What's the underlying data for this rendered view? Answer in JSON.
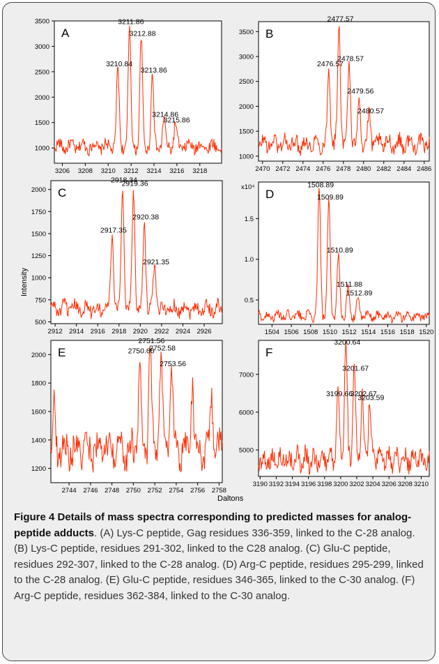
{
  "axis_ylabel": "Intensity",
  "axis_xlabel": "Daltons",
  "caption": {
    "title": "Figure 4 Details of mass spectra corresponding to predicted masses for analog-peptide adducts",
    "body": ". (A) Lys-C peptide, Gag residues 336-359, linked to the C-28 analog. (B) Lys-C peptide, residues 291-302, linked to the C28 analog. (C) Glu-C peptide, residues 292-307, linked to the C-28 analog. (D) Arg-C peptide, residues 295-299, linked to the C-28 analog. (E) Glu-C peptide, residues 346-365, linked to the C-30 analog. (F) Arg-C peptide, residues 362-384, linked to the C-30 analog."
  },
  "colors": {
    "trace": "#ff2a00",
    "frame": "#000000",
    "background": "#ffffff"
  },
  "chart_data": [
    {
      "type": "line",
      "panel": "A",
      "xlim": [
        3205.3,
        3219.9
      ],
      "ylim": [
        700,
        3500
      ],
      "xticks": [
        3206,
        3208,
        3210,
        3212,
        3214,
        3216,
        3218
      ],
      "yticks": [
        1000,
        1500,
        2000,
        2500,
        3000,
        3500
      ],
      "ytick_labels": [
        "1000",
        "1500",
        "2000",
        "2500",
        "3000",
        "3500"
      ],
      "baseline": 1030,
      "noise": 220,
      "peaks": [
        {
          "x": 3210.84,
          "y": 2550,
          "label": "3210.84"
        },
        {
          "x": 3211.86,
          "y": 3380,
          "label": "3211.86"
        },
        {
          "x": 3212.88,
          "y": 3150,
          "label": "3212.88"
        },
        {
          "x": 3213.86,
          "y": 2430,
          "label": "3213.86"
        },
        {
          "x": 3214.86,
          "y": 1560,
          "label": "3214.86"
        },
        {
          "x": 3215.86,
          "y": 1450,
          "label": "3215.86"
        }
      ]
    },
    {
      "type": "line",
      "panel": "B",
      "xlim": [
        2469.6,
        2486.5
      ],
      "ylim": [
        900,
        3700
      ],
      "xticks": [
        2470,
        2472,
        2474,
        2476,
        2478,
        2480,
        2482,
        2484,
        2486
      ],
      "yticks": [
        1000,
        1500,
        2000,
        2500,
        3000,
        3500
      ],
      "ytick_labels": [
        "1000",
        "1500",
        "2000",
        "2500",
        "3000",
        "3500"
      ],
      "baseline": 1250,
      "noise": 300,
      "peaks": [
        {
          "x": 2476.57,
          "y": 2750,
          "label": "2476.57"
        },
        {
          "x": 2477.57,
          "y": 3650,
          "label": "2477.57"
        },
        {
          "x": 2478.57,
          "y": 2850,
          "label": "2478.57"
        },
        {
          "x": 2479.56,
          "y": 2200,
          "label": "2479.56"
        },
        {
          "x": 2480.57,
          "y": 1800,
          "label": "2480.57"
        }
      ]
    },
    {
      "type": "line",
      "panel": "C",
      "xlim": [
        2911.6,
        2927.7
      ],
      "ylim": [
        480,
        2100
      ],
      "xticks": [
        2912,
        2914,
        2916,
        2918,
        2920,
        2922,
        2924,
        2926
      ],
      "yticks": [
        500,
        750,
        1000,
        1250,
        1500,
        1750,
        2000
      ],
      "ytick_labels": [
        "500",
        "750",
        "1000",
        "1250",
        "1500",
        "1750",
        "2000"
      ],
      "baseline": 650,
      "noise": 150,
      "peaks": [
        {
          "x": 2917.35,
          "y": 1480,
          "label": "2917.35"
        },
        {
          "x": 2918.34,
          "y": 2050,
          "label": "2918.34"
        },
        {
          "x": 2919.36,
          "y": 2010,
          "label": "2919.36"
        },
        {
          "x": 2920.38,
          "y": 1630,
          "label": "2920.38"
        },
        {
          "x": 2921.35,
          "y": 1120,
          "label": "2921.35"
        }
      ]
    },
    {
      "type": "line",
      "panel": "D",
      "xlim": [
        1502.6,
        1520.3
      ],
      "ylim": [
        0.2,
        1.95
      ],
      "xticks": [
        1504,
        1506,
        1508,
        1510,
        1512,
        1514,
        1516,
        1518,
        1520
      ],
      "yticks": [
        0.5,
        1.0,
        1.5
      ],
      "ytick_labels": [
        "0.5",
        "1.0",
        "1.5"
      ],
      "y_multiplier": "x10⁴",
      "baseline": 0.3,
      "noise": 0.1,
      "peaks": [
        {
          "x": 1508.89,
          "y": 1.85,
          "label": "1508.89"
        },
        {
          "x": 1509.89,
          "y": 1.7,
          "label": "1509.89"
        },
        {
          "x": 1510.89,
          "y": 1.05,
          "label": "1510.89"
        },
        {
          "x": 1511.88,
          "y": 0.63,
          "label": "1511.88"
        },
        {
          "x": 1512.89,
          "y": 0.52,
          "label": "1512.89"
        }
      ]
    },
    {
      "type": "line",
      "panel": "E",
      "xlim": [
        2742.3,
        2758.3
      ],
      "ylim": [
        1100,
        2100
      ],
      "xticks": [
        2744,
        2746,
        2748,
        2750,
        2752,
        2754,
        2756,
        2758
      ],
      "yticks": [
        1200,
        1400,
        1600,
        1800,
        2000
      ],
      "ytick_labels": [
        "1200",
        "1400",
        "1600",
        "1800",
        "2000"
      ],
      "baseline": 1330,
      "noise": 200,
      "peaks": [
        {
          "x": 2742.6,
          "y": 1600,
          "label": ""
        },
        {
          "x": 2750.6,
          "y": 1990,
          "label": "2750.60"
        },
        {
          "x": 2751.56,
          "y": 2060,
          "label": "2751.56"
        },
        {
          "x": 2752.58,
          "y": 2010,
          "label": "2752.58"
        },
        {
          "x": 2753.56,
          "y": 1900,
          "label": "2753.56"
        },
        {
          "x": 2755.5,
          "y": 1830,
          "label": ""
        },
        {
          "x": 2757.3,
          "y": 1730,
          "label": ""
        }
      ]
    },
    {
      "type": "line",
      "panel": "F",
      "xlim": [
        3189.8,
        3211.0
      ],
      "ylim": [
        4300,
        7900
      ],
      "xticks": [
        3190,
        3192,
        3194,
        3196,
        3198,
        3200,
        3202,
        3204,
        3206,
        3208,
        3210
      ],
      "yticks": [
        5000,
        6000,
        7000
      ],
      "ytick_labels": [
        "5000",
        "6000",
        "7000"
      ],
      "baseline": 4750,
      "noise": 500,
      "peaks": [
        {
          "x": 3199.66,
          "y": 6350,
          "label": "3199.66"
        },
        {
          "x": 3200.64,
          "y": 7720,
          "label": "3200.64"
        },
        {
          "x": 3201.67,
          "y": 7020,
          "label": "3201.67"
        },
        {
          "x": 3202.67,
          "y": 6350,
          "label": "3202.67"
        },
        {
          "x": 3203.59,
          "y": 6250,
          "label": "3203.59"
        }
      ]
    }
  ]
}
